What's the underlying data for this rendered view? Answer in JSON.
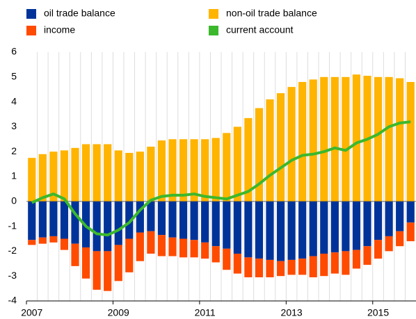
{
  "chart_data": {
    "type": "bar",
    "categories": [
      "2007",
      null,
      null,
      null,
      null,
      null,
      null,
      null,
      "2009",
      null,
      null,
      null,
      null,
      null,
      null,
      null,
      "2011",
      null,
      null,
      null,
      null,
      null,
      null,
      null,
      "2013",
      null,
      null,
      null,
      null,
      null,
      null,
      null,
      "2015",
      null,
      null,
      null
    ],
    "series": [
      {
        "name": "oil trade balance",
        "color": "#003399",
        "values": [
          -1.55,
          -1.45,
          -1.4,
          -1.5,
          -1.7,
          -1.85,
          -2.0,
          -2.0,
          -1.75,
          -1.5,
          -1.25,
          -1.2,
          -1.35,
          -1.45,
          -1.5,
          -1.55,
          -1.65,
          -1.8,
          -1.9,
          -2.1,
          -2.25,
          -2.3,
          -2.35,
          -2.4,
          -2.35,
          -2.3,
          -2.2,
          -2.1,
          -2.05,
          -2.0,
          -1.95,
          -1.8,
          -1.55,
          -1.4,
          -1.2,
          -0.85
        ]
      },
      {
        "name": "non-oil trade balance",
        "color": "#ffb400",
        "values": [
          1.75,
          1.9,
          2.0,
          2.05,
          2.15,
          2.3,
          2.3,
          2.3,
          2.05,
          1.95,
          2.0,
          2.2,
          2.45,
          2.5,
          2.5,
          2.5,
          2.5,
          2.55,
          2.75,
          3.0,
          3.35,
          3.75,
          4.1,
          4.35,
          4.6,
          4.8,
          4.9,
          5.0,
          5.0,
          5.0,
          5.1,
          5.05,
          5.0,
          5.0,
          4.95,
          4.8
        ]
      },
      {
        "name": "income",
        "color": "#ff4b00",
        "values": [
          -0.2,
          -0.25,
          -0.25,
          -0.45,
          -0.9,
          -1.25,
          -1.55,
          -1.6,
          -1.45,
          -1.35,
          -1.15,
          -0.9,
          -0.85,
          -0.75,
          -0.75,
          -0.7,
          -0.65,
          -0.65,
          -0.85,
          -0.8,
          -0.8,
          -0.75,
          -0.7,
          -0.6,
          -0.6,
          -0.65,
          -0.85,
          -0.9,
          -0.85,
          -0.95,
          -0.75,
          -0.75,
          -0.75,
          -0.6,
          -0.6,
          -0.75
        ]
      },
      {
        "name": "current account",
        "color": "#3cb82d",
        "type": "line",
        "values": [
          -0.05,
          0.15,
          0.3,
          0.1,
          -0.5,
          -1.0,
          -1.3,
          -1.35,
          -1.15,
          -0.85,
          -0.35,
          0.05,
          0.2,
          0.25,
          0.25,
          0.3,
          0.2,
          0.15,
          0.1,
          0.25,
          0.4,
          0.7,
          1.05,
          1.35,
          1.65,
          1.85,
          1.9,
          2.0,
          2.15,
          2.05,
          2.35,
          2.5,
          2.7,
          3.0,
          3.15,
          3.2
        ]
      }
    ],
    "ylim": [
      -4,
      6
    ],
    "yticks": [
      -4,
      -3,
      -2,
      -1,
      0,
      1,
      2,
      3,
      4,
      5,
      6
    ],
    "grid": false
  }
}
